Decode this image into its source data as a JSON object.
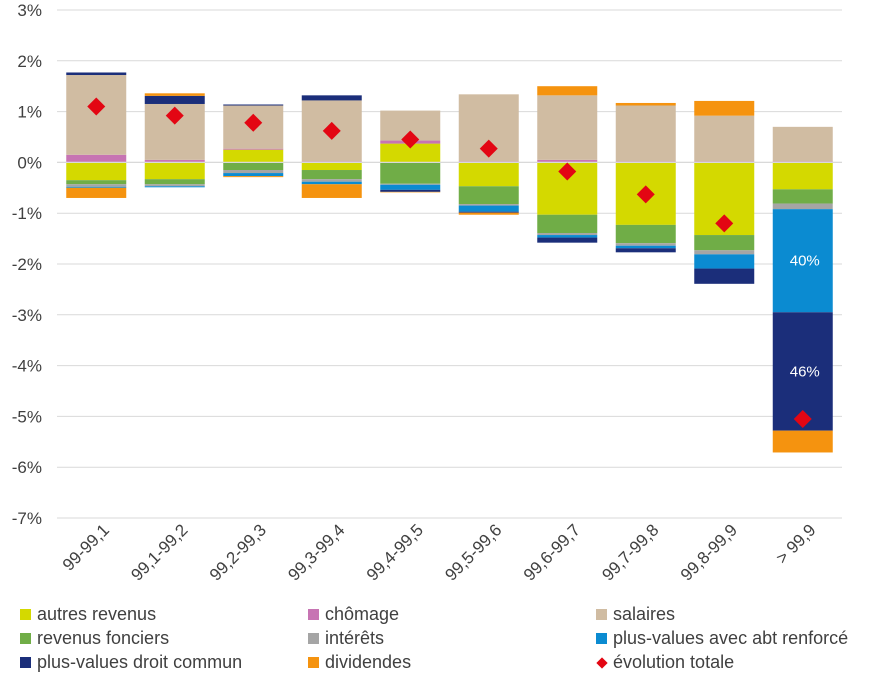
{
  "chart_data": {
    "type": "bar",
    "stacked": true,
    "categories": [
      "99-99,1",
      "99,1-99,2",
      "99,2-99,3",
      "99,3-99,4",
      "99,4-99,5",
      "99,5-99,6",
      "99,6-99,7",
      "99,7-99,8",
      "99,8-99,9",
      "> 99,9"
    ],
    "ylim": [
      -7,
      3
    ],
    "yticks": [
      "3%",
      "2%",
      "1%",
      "0%",
      "-1%",
      "-2%",
      "-3%",
      "-4%",
      "-5%",
      "-6%",
      "-7%"
    ],
    "ytick_values": [
      3,
      2,
      1,
      0,
      -1,
      -2,
      -3,
      -4,
      -5,
      -6,
      -7
    ],
    "legend_position": "bottom",
    "series": [
      {
        "key": "autres",
        "name": "autres revenus",
        "color": "#d4d900",
        "values": [
          -0.35,
          -0.33,
          0.25,
          -0.15,
          0.37,
          -0.47,
          -1.03,
          -1.23,
          -1.43,
          -0.53
        ]
      },
      {
        "key": "chomage",
        "name": "chômage",
        "color": "#c774b3",
        "values": [
          0.15,
          0.05,
          0.02,
          0.02,
          0.06,
          0.02,
          0.05,
          0.02,
          0.02,
          0.02
        ]
      },
      {
        "key": "salaires",
        "name": "salaires",
        "color": "#d0bca2",
        "values": [
          1.57,
          1.1,
          0.85,
          1.2,
          0.59,
          1.32,
          1.27,
          1.1,
          0.9,
          0.68
        ]
      },
      {
        "key": "fonciers",
        "name": "revenus fonciers",
        "color": "#70ad47",
        "values": [
          -0.08,
          -0.1,
          -0.15,
          -0.18,
          -0.42,
          -0.35,
          -0.36,
          -0.36,
          -0.3,
          -0.28
        ]
      },
      {
        "key": "interets",
        "name": "intérêts",
        "color": "#a5a5a5",
        "values": [
          -0.05,
          -0.04,
          -0.06,
          -0.05,
          -0.02,
          -0.03,
          -0.04,
          -0.05,
          -0.08,
          -0.11
        ]
      },
      {
        "key": "pv_renforce",
        "name": "plus-values avec abt renforcé",
        "color": "#0b8bd1",
        "values": [
          -0.02,
          -0.02,
          -0.06,
          -0.05,
          -0.1,
          -0.12,
          -0.05,
          -0.05,
          -0.28,
          -2.03
        ]
      },
      {
        "key": "pv_droit",
        "name": "plus-values droit commun",
        "color": "#1b2e7a",
        "values": [
          0.05,
          0.16,
          0.02,
          0.1,
          -0.04,
          -0.02,
          -0.1,
          -0.08,
          -0.3,
          -2.33
        ]
      },
      {
        "key": "dividendes",
        "name": "dividendes",
        "color": "#f5930f",
        "values": [
          -0.2,
          0.05,
          -0.02,
          -0.27,
          -0.01,
          -0.04,
          0.18,
          0.05,
          0.29,
          -0.43
        ]
      }
    ],
    "total": {
      "name": "évolution totale",
      "color": "#e30613",
      "values": [
        1.1,
        0.92,
        0.78,
        0.62,
        0.45,
        0.27,
        -0.18,
        -0.63,
        -1.2,
        -5.05
      ]
    },
    "annotations": [
      {
        "category": "> 99,9",
        "series": "pv_droit",
        "text": "46%"
      },
      {
        "category": "> 99,9",
        "series": "pv_renforce",
        "text": "40%"
      }
    ]
  },
  "legend": {
    "items": [
      {
        "label": "autres revenus",
        "marker": "square",
        "color": "#d4d900"
      },
      {
        "label": "chômage",
        "marker": "square",
        "color": "#c774b3"
      },
      {
        "label": "salaires",
        "marker": "square",
        "color": "#d0bca2"
      },
      {
        "label": "revenus fonciers",
        "marker": "square",
        "color": "#70ad47"
      },
      {
        "label": "intérêts",
        "marker": "square",
        "color": "#a5a5a5"
      },
      {
        "label": "plus-values avec abt renforcé",
        "marker": "square",
        "color": "#0b8bd1"
      },
      {
        "label": "plus-values droit commun",
        "marker": "square",
        "color": "#1b2e7a"
      },
      {
        "label": "dividendes",
        "marker": "square",
        "color": "#f5930f"
      },
      {
        "label": "évolution totale",
        "marker": "diamond",
        "color": "#e30613"
      }
    ]
  }
}
